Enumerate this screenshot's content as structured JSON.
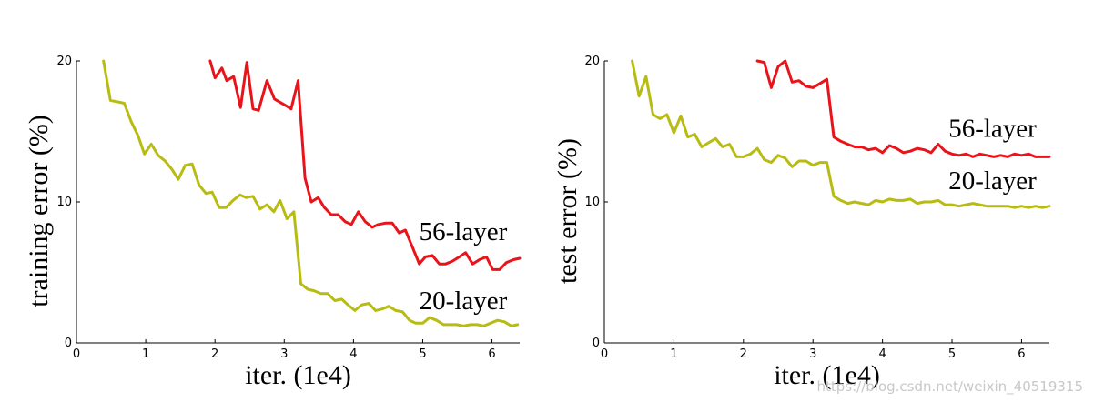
{
  "chart_data": [
    {
      "type": "line",
      "name": "training-chart",
      "xlabel": "iter. (1e4)",
      "ylabel": "training error (%)",
      "xlim": [
        0,
        6.4
      ],
      "ylim": [
        0,
        20
      ],
      "xticks": [
        0,
        1,
        2,
        3,
        4,
        5,
        6
      ],
      "yticks": [
        0,
        10,
        20
      ],
      "grid": false,
      "series": [
        {
          "name": "56-layer",
          "color": "#e8141a",
          "x": [
            1.93,
            2.0,
            2.1,
            2.17,
            2.27,
            2.37,
            2.46,
            2.55,
            2.63,
            2.75,
            2.86,
            3.0,
            3.1,
            3.2,
            3.3,
            3.39,
            3.49,
            3.58,
            3.68,
            3.78,
            3.88,
            3.97,
            4.07,
            4.17,
            4.27,
            4.36,
            4.46,
            4.56,
            4.66,
            4.75,
            4.85,
            4.95,
            5.04,
            5.14,
            5.24,
            5.33,
            5.43,
            5.53,
            5.62,
            5.72,
            5.82,
            5.92,
            6.01,
            6.11,
            6.21,
            6.31,
            6.4
          ],
          "y": [
            20.0,
            18.8,
            19.5,
            18.6,
            18.9,
            16.7,
            19.9,
            16.6,
            16.5,
            18.6,
            17.3,
            16.9,
            16.6,
            18.6,
            11.7,
            10.0,
            10.3,
            9.6,
            9.1,
            9.1,
            8.6,
            8.4,
            9.3,
            8.6,
            8.2,
            8.4,
            8.5,
            8.5,
            7.8,
            8.0,
            6.8,
            5.6,
            6.1,
            6.2,
            5.6,
            5.6,
            5.8,
            6.1,
            6.4,
            5.6,
            5.9,
            6.1,
            5.2,
            5.2,
            5.7,
            5.9,
            6.0
          ]
        },
        {
          "name": "20-layer",
          "color": "#b8bc12",
          "x": [
            0.39,
            0.49,
            0.59,
            0.69,
            0.79,
            0.89,
            0.98,
            1.08,
            1.18,
            1.28,
            1.38,
            1.47,
            1.57,
            1.67,
            1.77,
            1.87,
            1.96,
            2.06,
            2.16,
            2.26,
            2.36,
            2.45,
            2.55,
            2.65,
            2.75,
            2.85,
            2.94,
            3.04,
            3.14,
            3.24,
            3.34,
            3.43,
            3.53,
            3.63,
            3.73,
            3.83,
            3.92,
            4.02,
            4.12,
            4.22,
            4.32,
            4.41,
            4.51,
            4.61,
            4.71,
            4.81,
            4.9,
            5.0,
            5.1,
            5.2,
            5.3,
            5.39,
            5.49,
            5.59,
            5.69,
            5.79,
            5.88,
            5.98,
            6.08,
            6.18,
            6.28,
            6.37
          ],
          "y": [
            20.0,
            17.2,
            17.1,
            17.0,
            15.7,
            14.7,
            13.4,
            14.1,
            13.3,
            12.9,
            12.3,
            11.6,
            12.6,
            12.7,
            11.2,
            10.6,
            10.7,
            9.6,
            9.6,
            10.1,
            10.5,
            10.3,
            10.4,
            9.5,
            9.8,
            9.3,
            10.1,
            8.8,
            9.3,
            4.2,
            3.8,
            3.7,
            3.5,
            3.5,
            3.0,
            3.1,
            2.7,
            2.3,
            2.7,
            2.8,
            2.3,
            2.4,
            2.6,
            2.3,
            2.2,
            1.6,
            1.4,
            1.4,
            1.8,
            1.6,
            1.3,
            1.3,
            1.3,
            1.2,
            1.3,
            1.3,
            1.2,
            1.4,
            1.6,
            1.5,
            1.2,
            1.3
          ]
        }
      ],
      "annotations": [
        {
          "text": "56-layer",
          "x": 4.95,
          "y": 7.3
        },
        {
          "text": "20-layer",
          "x": 4.95,
          "y": 2.4
        }
      ]
    },
    {
      "type": "line",
      "name": "test-chart",
      "xlabel": "iter. (1e4)",
      "ylabel": "test error (%)",
      "xlim": [
        0,
        6.4
      ],
      "ylim": [
        0,
        20
      ],
      "xticks": [
        0,
        1,
        2,
        3,
        4,
        5,
        6
      ],
      "yticks": [
        0,
        10,
        20
      ],
      "grid": false,
      "series": [
        {
          "name": "56-layer",
          "color": "#e8141a",
          "x": [
            2.2,
            2.3,
            2.4,
            2.5,
            2.6,
            2.7,
            2.8,
            2.9,
            3.0,
            3.1,
            3.2,
            3.3,
            3.4,
            3.5,
            3.6,
            3.7,
            3.8,
            3.9,
            4.0,
            4.1,
            4.2,
            4.3,
            4.4,
            4.5,
            4.6,
            4.7,
            4.8,
            4.9,
            5.0,
            5.1,
            5.2,
            5.3,
            5.4,
            5.5,
            5.6,
            5.7,
            5.8,
            5.9,
            6.0,
            6.1,
            6.2,
            6.3,
            6.4
          ],
          "y": [
            20.0,
            19.9,
            18.1,
            19.6,
            20.0,
            18.5,
            18.6,
            18.2,
            18.1,
            18.4,
            18.7,
            14.6,
            14.3,
            14.1,
            13.9,
            13.9,
            13.7,
            13.8,
            13.5,
            14.0,
            13.8,
            13.5,
            13.6,
            13.8,
            13.7,
            13.5,
            14.1,
            13.6,
            13.4,
            13.3,
            13.4,
            13.2,
            13.4,
            13.3,
            13.2,
            13.3,
            13.2,
            13.4,
            13.3,
            13.4,
            13.2,
            13.2,
            13.2
          ]
        },
        {
          "name": "20-layer",
          "color": "#b8bc12",
          "x": [
            0.4,
            0.5,
            0.6,
            0.7,
            0.8,
            0.9,
            1.0,
            1.1,
            1.2,
            1.3,
            1.4,
            1.5,
            1.6,
            1.7,
            1.8,
            1.9,
            2.0,
            2.1,
            2.2,
            2.3,
            2.4,
            2.5,
            2.6,
            2.7,
            2.8,
            2.9,
            3.0,
            3.1,
            3.2,
            3.3,
            3.4,
            3.5,
            3.6,
            3.7,
            3.8,
            3.9,
            4.0,
            4.1,
            4.2,
            4.3,
            4.4,
            4.5,
            4.6,
            4.7,
            4.8,
            4.9,
            5.0,
            5.1,
            5.2,
            5.3,
            5.4,
            5.5,
            5.6,
            5.7,
            5.8,
            5.9,
            6.0,
            6.1,
            6.2,
            6.3,
            6.4
          ],
          "y": [
            20.0,
            17.5,
            18.9,
            16.2,
            15.9,
            16.2,
            14.9,
            16.1,
            14.6,
            14.8,
            13.9,
            14.2,
            14.5,
            13.9,
            14.1,
            13.2,
            13.2,
            13.4,
            13.8,
            13.0,
            12.8,
            13.3,
            13.1,
            12.5,
            12.9,
            12.9,
            12.6,
            12.8,
            12.8,
            10.4,
            10.1,
            9.9,
            10.0,
            9.9,
            9.8,
            10.1,
            10.0,
            10.2,
            10.1,
            10.1,
            10.2,
            9.9,
            10.0,
            10.0,
            10.1,
            9.8,
            9.8,
            9.7,
            9.8,
            9.9,
            9.8,
            9.7,
            9.7,
            9.7,
            9.7,
            9.6,
            9.7,
            9.6,
            9.7,
            9.6,
            9.7
          ]
        }
      ],
      "annotations": [
        {
          "text": "56-layer",
          "x": 4.95,
          "y": 14.6
        },
        {
          "text": "20-layer",
          "x": 4.95,
          "y": 10.9
        }
      ]
    }
  ],
  "watermark": "https://blog.csdn.net/weixin_40519315"
}
